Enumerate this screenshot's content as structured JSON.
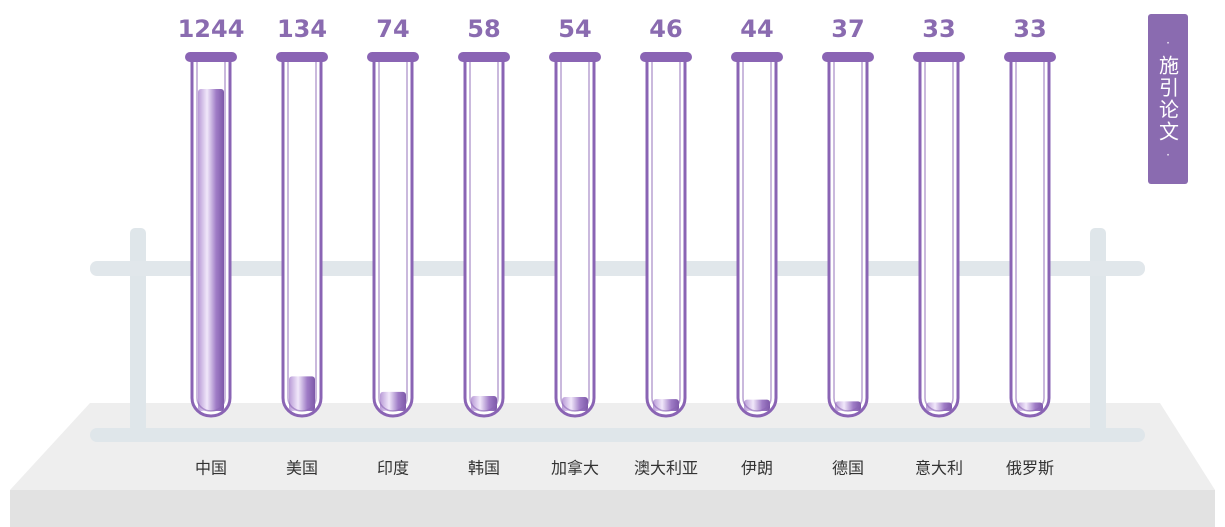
{
  "chart_data": {
    "type": "bar",
    "title": "施引论文",
    "categories": [
      "中国",
      "美国",
      "印度",
      "韩国",
      "加拿大",
      "澳大利亚",
      "伊朗",
      "德国",
      "意大利",
      "俄罗斯"
    ],
    "values": [
      1244,
      134,
      74,
      58,
      54,
      46,
      44,
      37,
      33,
      33
    ],
    "color": "#8a64b4"
  }
}
